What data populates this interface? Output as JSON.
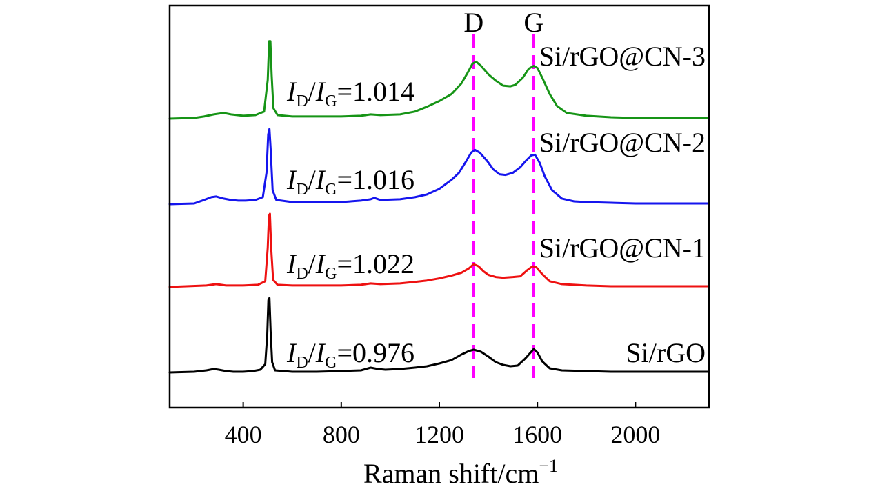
{
  "chart_data": {
    "type": "line",
    "title": "",
    "xlabel": "Raman shift/cm",
    "xlabel_sup": "−1",
    "ylabel": "",
    "xlim": [
      100,
      2300
    ],
    "xticks": [
      400,
      800,
      1200,
      1600,
      2000
    ],
    "xtick_labels": [
      "400",
      "800",
      "1200",
      "1600",
      "2000"
    ],
    "yticks_visible": false,
    "peak_lines": [
      {
        "name": "D",
        "label": "D",
        "x": 1340,
        "color": "#ff00ff"
      },
      {
        "name": "G",
        "label": "G",
        "x": 1585,
        "color": "#ff00ff"
      }
    ],
    "series": [
      {
        "key": "si-rgo",
        "name": "Si/rGO",
        "color": "#000000",
        "ratio_var_a": "I",
        "ratio_sub_a": "D",
        "ratio_var_b": "I",
        "ratio_sub_b": "G",
        "ratio_value": "=0.976",
        "baseline": 0,
        "points": [
          [
            100,
            0
          ],
          [
            200,
            1
          ],
          [
            250,
            3
          ],
          [
            280,
            5
          ],
          [
            300,
            4
          ],
          [
            330,
            2
          ],
          [
            360,
            1
          ],
          [
            400,
            1
          ],
          [
            440,
            2
          ],
          [
            470,
            4
          ],
          [
            490,
            12
          ],
          [
            498,
            55
          ],
          [
            503,
            105
          ],
          [
            507,
            108
          ],
          [
            512,
            60
          ],
          [
            518,
            15
          ],
          [
            530,
            3
          ],
          [
            600,
            1
          ],
          [
            700,
            1
          ],
          [
            800,
            2
          ],
          [
            880,
            3
          ],
          [
            920,
            7
          ],
          [
            950,
            5
          ],
          [
            980,
            4
          ],
          [
            1040,
            5
          ],
          [
            1100,
            7
          ],
          [
            1150,
            9
          ],
          [
            1200,
            13
          ],
          [
            1250,
            18
          ],
          [
            1290,
            26
          ],
          [
            1320,
            31
          ],
          [
            1340,
            33
          ],
          [
            1370,
            30
          ],
          [
            1400,
            23
          ],
          [
            1430,
            15
          ],
          [
            1460,
            11
          ],
          [
            1490,
            9
          ],
          [
            1520,
            10
          ],
          [
            1550,
            20
          ],
          [
            1570,
            28
          ],
          [
            1585,
            34
          ],
          [
            1600,
            29
          ],
          [
            1620,
            16
          ],
          [
            1650,
            6
          ],
          [
            1700,
            3
          ],
          [
            1800,
            2
          ],
          [
            1900,
            1
          ],
          [
            2000,
            1
          ],
          [
            2100,
            1
          ],
          [
            2200,
            1
          ],
          [
            2300,
            1
          ]
        ]
      },
      {
        "key": "si-rgo-cn-1",
        "name": "Si/rGO@CN-1",
        "color": "#ee1111",
        "ratio_var_a": "I",
        "ratio_sub_a": "D",
        "ratio_var_b": "I",
        "ratio_sub_b": "G",
        "ratio_value": "=1.022",
        "baseline": 0,
        "points": [
          [
            100,
            0
          ],
          [
            250,
            2
          ],
          [
            290,
            4
          ],
          [
            330,
            2
          ],
          [
            400,
            2
          ],
          [
            460,
            3
          ],
          [
            490,
            8
          ],
          [
            500,
            55
          ],
          [
            505,
            100
          ],
          [
            509,
            103
          ],
          [
            514,
            55
          ],
          [
            522,
            10
          ],
          [
            540,
            3
          ],
          [
            600,
            2
          ],
          [
            700,
            2
          ],
          [
            800,
            2
          ],
          [
            880,
            3
          ],
          [
            920,
            5
          ],
          [
            960,
            4
          ],
          [
            1040,
            5
          ],
          [
            1100,
            7
          ],
          [
            1150,
            9
          ],
          [
            1200,
            12
          ],
          [
            1250,
            16
          ],
          [
            1290,
            20
          ],
          [
            1320,
            26
          ],
          [
            1340,
            32
          ],
          [
            1360,
            29
          ],
          [
            1380,
            22
          ],
          [
            1400,
            17
          ],
          [
            1430,
            14
          ],
          [
            1460,
            13
          ],
          [
            1500,
            14
          ],
          [
            1530,
            15
          ],
          [
            1560,
            24
          ],
          [
            1580,
            29
          ],
          [
            1595,
            28
          ],
          [
            1620,
            18
          ],
          [
            1650,
            8
          ],
          [
            1700,
            4
          ],
          [
            1800,
            2
          ],
          [
            1900,
            1
          ],
          [
            2000,
            1
          ],
          [
            2100,
            1
          ],
          [
            2200,
            1
          ],
          [
            2300,
            1
          ]
        ]
      },
      {
        "key": "si-rgo-cn-2",
        "name": "Si/rGO@CN-2",
        "color": "#1515ee",
        "ratio_var_a": "I",
        "ratio_sub_a": "D",
        "ratio_var_b": "I",
        "ratio_sub_b": "G",
        "ratio_value": "=1.016",
        "baseline": 0,
        "points": [
          [
            100,
            0
          ],
          [
            200,
            1
          ],
          [
            240,
            6
          ],
          [
            270,
            10
          ],
          [
            290,
            11
          ],
          [
            320,
            8
          ],
          [
            350,
            6
          ],
          [
            380,
            5
          ],
          [
            410,
            5
          ],
          [
            450,
            6
          ],
          [
            480,
            10
          ],
          [
            495,
            45
          ],
          [
            502,
            100
          ],
          [
            507,
            108
          ],
          [
            512,
            80
          ],
          [
            520,
            20
          ],
          [
            535,
            6
          ],
          [
            600,
            3
          ],
          [
            700,
            3
          ],
          [
            800,
            3
          ],
          [
            880,
            5
          ],
          [
            920,
            7
          ],
          [
            935,
            9
          ],
          [
            960,
            6
          ],
          [
            1040,
            7
          ],
          [
            1100,
            10
          ],
          [
            1150,
            14
          ],
          [
            1200,
            22
          ],
          [
            1250,
            35
          ],
          [
            1280,
            45
          ],
          [
            1310,
            62
          ],
          [
            1330,
            74
          ],
          [
            1345,
            78
          ],
          [
            1365,
            74
          ],
          [
            1395,
            62
          ],
          [
            1420,
            50
          ],
          [
            1445,
            43
          ],
          [
            1470,
            42
          ],
          [
            1500,
            45
          ],
          [
            1530,
            53
          ],
          [
            1555,
            63
          ],
          [
            1575,
            70
          ],
          [
            1590,
            71
          ],
          [
            1610,
            59
          ],
          [
            1630,
            40
          ],
          [
            1660,
            20
          ],
          [
            1700,
            8
          ],
          [
            1750,
            4
          ],
          [
            1800,
            3
          ],
          [
            1900,
            2
          ],
          [
            2000,
            1
          ],
          [
            2100,
            1
          ],
          [
            2200,
            1
          ],
          [
            2300,
            1
          ]
        ]
      },
      {
        "key": "si-rgo-cn-3",
        "name": "Si/rGO@CN-3",
        "color": "#169416",
        "ratio_var_a": "I",
        "ratio_sub_a": "D",
        "ratio_var_b": "I",
        "ratio_sub_b": "G",
        "ratio_value": "=1.014",
        "baseline": 0,
        "points": [
          [
            100,
            0
          ],
          [
            200,
            1
          ],
          [
            240,
            3
          ],
          [
            280,
            6
          ],
          [
            320,
            8
          ],
          [
            350,
            6
          ],
          [
            400,
            4
          ],
          [
            450,
            5
          ],
          [
            485,
            10
          ],
          [
            500,
            55
          ],
          [
            506,
            110
          ],
          [
            511,
            110
          ],
          [
            516,
            62
          ],
          [
            523,
            15
          ],
          [
            540,
            5
          ],
          [
            600,
            3
          ],
          [
            700,
            3
          ],
          [
            800,
            3
          ],
          [
            880,
            4
          ],
          [
            920,
            6
          ],
          [
            960,
            5
          ],
          [
            1040,
            6
          ],
          [
            1100,
            10
          ],
          [
            1150,
            17
          ],
          [
            1200,
            25
          ],
          [
            1250,
            35
          ],
          [
            1290,
            50
          ],
          [
            1315,
            65
          ],
          [
            1335,
            78
          ],
          [
            1350,
            81
          ],
          [
            1370,
            75
          ],
          [
            1400,
            63
          ],
          [
            1430,
            54
          ],
          [
            1460,
            47
          ],
          [
            1490,
            46
          ],
          [
            1510,
            48
          ],
          [
            1540,
            58
          ],
          [
            1565,
            71
          ],
          [
            1585,
            75
          ],
          [
            1600,
            72
          ],
          [
            1620,
            58
          ],
          [
            1650,
            35
          ],
          [
            1680,
            18
          ],
          [
            1720,
            8
          ],
          [
            1800,
            4
          ],
          [
            1900,
            2
          ],
          [
            2000,
            1
          ],
          [
            2100,
            1
          ],
          [
            2200,
            1
          ],
          [
            2300,
            1
          ]
        ]
      }
    ]
  }
}
